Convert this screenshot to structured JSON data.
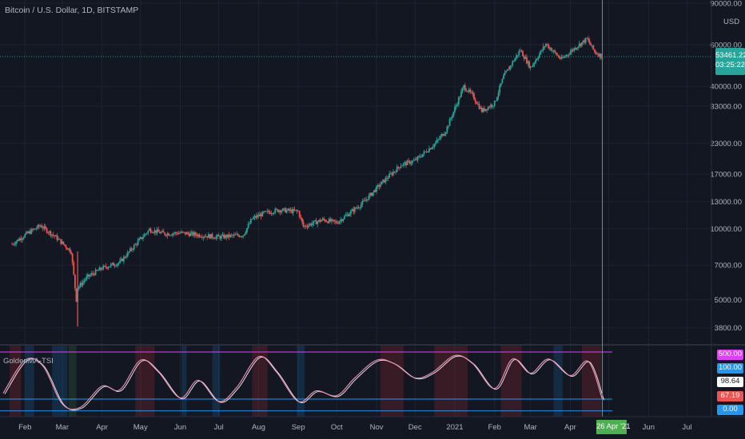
{
  "header": {
    "title": "Bitcoin / U.S. Dollar, 1D, BITSTAMP",
    "currency": "USD"
  },
  "price_badge": {
    "value": "53461.22",
    "countdown": "03:25:22"
  },
  "indicator": {
    "title": "GoldenMA-TSI",
    "badges": [
      {
        "text": "500.00",
        "color": "#e040fb"
      },
      {
        "text": "100.00",
        "color": "#2196f3"
      },
      {
        "text": "98.64",
        "color": "#ffffff"
      },
      {
        "text": "67.19",
        "color": "#ef5350"
      },
      {
        "text": "0.00",
        "color": "#2196f3"
      }
    ]
  },
  "crosshair_label": "26 Apr '21",
  "colors": {
    "background": "#131722",
    "grid": "#1f2330",
    "up": "#26a69a",
    "down": "#ef5350",
    "crosshair": "#4caf50",
    "tsi_line": "#f48fb1",
    "signal_line": "#e0e0e0",
    "upper_band": "#e040fb",
    "lower_band": "#2196f3"
  },
  "chart_data": [
    {
      "type": "candlestick",
      "title": "Bitcoin / U.S. Dollar, 1D, BITSTAMP",
      "y_scale": "log",
      "ylabel": "USD",
      "y_ticks": [
        "90000.00",
        "60000.00",
        "40000.00",
        "33000.00",
        "23000.00",
        "17000.00",
        "13000.00",
        "10000.00",
        "7000.00",
        "5000.00",
        "3800.00"
      ],
      "x_ticks": [
        "Feb",
        "Mar",
        "Apr",
        "May",
        "Jun",
        "Jul",
        "Aug",
        "Sep",
        "Oct",
        "Nov",
        "Dec",
        "2021",
        "Feb",
        "Mar",
        "Apr",
        "May",
        "Jun",
        "Jul"
      ],
      "ylim": [
        3400,
        90000
      ],
      "last_price": 53461.22,
      "series": [
        {
          "name": "Close",
          "x": [
            "2020-01-22",
            "2020-02-01",
            "2020-02-13",
            "2020-02-25",
            "2020-03-08",
            "2020-03-12",
            "2020-03-13",
            "2020-03-20",
            "2020-04-01",
            "2020-04-15",
            "2020-04-29",
            "2020-05-08",
            "2020-05-20",
            "2020-06-01",
            "2020-06-15",
            "2020-07-01",
            "2020-07-20",
            "2020-07-27",
            "2020-08-05",
            "2020-08-17",
            "2020-09-01",
            "2020-09-05",
            "2020-09-20",
            "2020-10-01",
            "2020-10-21",
            "2020-11-05",
            "2020-11-20",
            "2020-12-01",
            "2020-12-17",
            "2020-12-25",
            "2021-01-08",
            "2021-01-15",
            "2021-01-22",
            "2021-02-01",
            "2021-02-08",
            "2021-02-21",
            "2021-03-01",
            "2021-03-13",
            "2021-03-25",
            "2021-04-05",
            "2021-04-14",
            "2021-04-20",
            "2021-04-26"
          ],
          "values": [
            8600,
            9400,
            10300,
            9200,
            8000,
            5000,
            5600,
            6200,
            6800,
            7200,
            8800,
            9900,
            9500,
            9600,
            9400,
            9200,
            9400,
            11000,
            11600,
            12000,
            11800,
            10200,
            10900,
            10600,
            12800,
            15600,
            18600,
            19400,
            23000,
            26000,
            40000,
            36500,
            31500,
            34000,
            44000,
            57000,
            48000,
            60500,
            52000,
            58500,
            63500,
            56000,
            53461
          ]
        }
      ]
    },
    {
      "type": "line",
      "title": "GoldenMA-TSI",
      "ylim": [
        -15,
        520
      ],
      "reference_lines": [
        500,
        100,
        67.19,
        0
      ],
      "series": [
        {
          "name": "TSI",
          "x": [
            "2020-01-15",
            "2020-02-01",
            "2020-02-15",
            "2020-03-01",
            "2020-03-15",
            "2020-04-01",
            "2020-04-15",
            "2020-05-01",
            "2020-05-15",
            "2020-06-01",
            "2020-06-15",
            "2020-07-01",
            "2020-07-15",
            "2020-08-01",
            "2020-08-15",
            "2020-09-01",
            "2020-09-15",
            "2020-10-01",
            "2020-10-15",
            "2020-11-01",
            "2020-11-15",
            "2020-12-01",
            "2020-12-15",
            "2021-01-01",
            "2021-01-15",
            "2021-02-01",
            "2021-02-15",
            "2021-03-01",
            "2021-03-15",
            "2021-04-01",
            "2021-04-15",
            "2021-04-26"
          ],
          "values": [
            150,
            430,
            380,
            60,
            30,
            210,
            180,
            430,
            330,
            110,
            260,
            80,
            200,
            460,
            330,
            80,
            170,
            130,
            280,
            430,
            400,
            280,
            330,
            470,
            400,
            190,
            440,
            320,
            440,
            300,
            420,
            98.64
          ]
        }
      ]
    }
  ]
}
